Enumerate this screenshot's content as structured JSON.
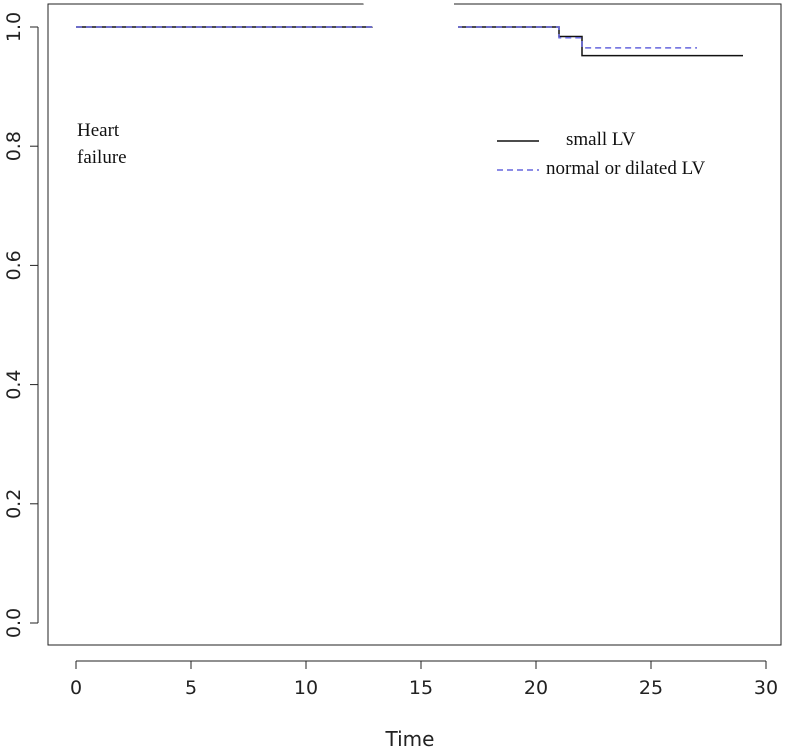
{
  "chart_data": {
    "type": "line",
    "subtype": "step (Kaplan-Meier survival curves)",
    "xlabel": "Time",
    "ylabel": "",
    "xlim": [
      0,
      30
    ],
    "ylim": [
      0,
      1
    ],
    "xticks": [
      0,
      5,
      10,
      15,
      20,
      25,
      30
    ],
    "yticks": [
      0.0,
      0.2,
      0.4,
      0.6,
      0.8,
      1.0
    ],
    "xtick_labels": [
      "0",
      "5",
      "10",
      "15",
      "20",
      "25",
      "30"
    ],
    "ytick_labels": [
      "0.0",
      "0.2",
      "0.4",
      "0.6",
      "0.8",
      "1.0"
    ],
    "grid": false,
    "annotation": [
      "Heart",
      "failure"
    ],
    "legend": {
      "placement": "top-right",
      "entries": [
        "small LV",
        "normal or dilated LV"
      ]
    },
    "series": [
      {
        "name": "small LV",
        "color": "#111111",
        "line_style": "solid",
        "x": [
          0,
          21,
          22,
          29
        ],
        "y": [
          1.0,
          0.984,
          0.952,
          0.952
        ]
      },
      {
        "name": "normal or dilated LV",
        "color": "#6666dd",
        "line_style": "dashed",
        "x": [
          0,
          21,
          22,
          27
        ],
        "y": [
          1.0,
          0.982,
          0.965,
          0.965
        ]
      }
    ]
  }
}
